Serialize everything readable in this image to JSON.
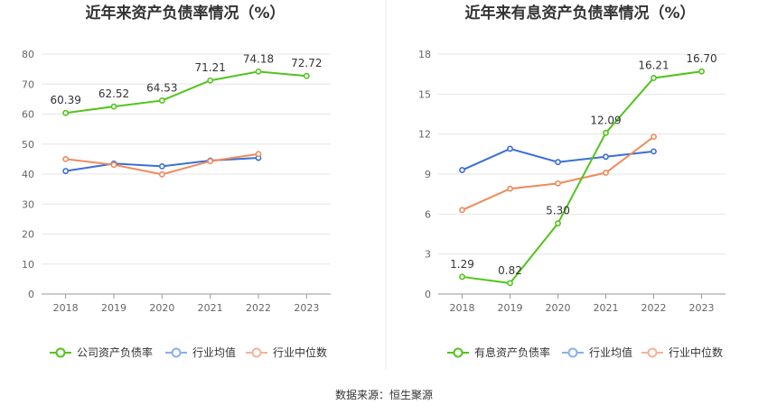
{
  "footer": {
    "source": "数据来源：恒生聚源"
  },
  "chart_data": [
    {
      "type": "line",
      "title": "近年来资产负债率情况（%）",
      "categories": [
        "2018",
        "2019",
        "2020",
        "2021",
        "2022",
        "2023"
      ],
      "ylim": [
        0,
        80
      ],
      "yticks": [
        0,
        10,
        20,
        30,
        40,
        50,
        60,
        70,
        80
      ],
      "grid": true,
      "legend_position": "bottom",
      "series": [
        {
          "name": "公司资产负债率",
          "color": "#52c41a",
          "labels": true,
          "values": [
            60.39,
            62.52,
            64.53,
            71.21,
            74.18,
            72.72
          ]
        },
        {
          "name": "行业均值",
          "color": "#3a6fd8",
          "labels": false,
          "values": [
            41.0,
            43.5,
            42.6,
            44.5,
            45.4,
            null
          ]
        },
        {
          "name": "行业中位数",
          "color": "#ee8a5b",
          "labels": false,
          "values": [
            45.0,
            43.1,
            39.9,
            44.3,
            46.7,
            null
          ]
        }
      ],
      "legend": [
        {
          "name": "公司资产负债率",
          "color": "#52c41a"
        },
        {
          "name": "行业均值",
          "color": "#8ab0ea"
        },
        {
          "name": "行业中位数",
          "color": "#f2b49a"
        }
      ]
    },
    {
      "type": "line",
      "title": "近年来有息资产负债率情况（%）",
      "categories": [
        "2018",
        "2019",
        "2020",
        "2021",
        "2022",
        "2023"
      ],
      "ylim": [
        0,
        18
      ],
      "yticks": [
        0,
        3,
        6,
        9,
        12,
        15,
        18
      ],
      "grid": true,
      "legend_position": "bottom",
      "series": [
        {
          "name": "有息资产负债率",
          "color": "#52c41a",
          "labels": true,
          "values": [
            1.29,
            0.82,
            5.3,
            12.09,
            16.21,
            16.7
          ]
        },
        {
          "name": "行业均值",
          "color": "#3a6fd8",
          "labels": false,
          "values": [
            9.3,
            10.9,
            9.9,
            10.3,
            10.7,
            null
          ]
        },
        {
          "name": "行业中位数",
          "color": "#ee8a5b",
          "labels": false,
          "values": [
            6.3,
            7.9,
            8.3,
            9.1,
            11.8,
            null
          ]
        }
      ],
      "legend": [
        {
          "name": "有息资产负债率",
          "color": "#52c41a"
        },
        {
          "name": "行业均值",
          "color": "#8ab0ea"
        },
        {
          "name": "行业中位数",
          "color": "#f2b49a"
        }
      ]
    }
  ]
}
